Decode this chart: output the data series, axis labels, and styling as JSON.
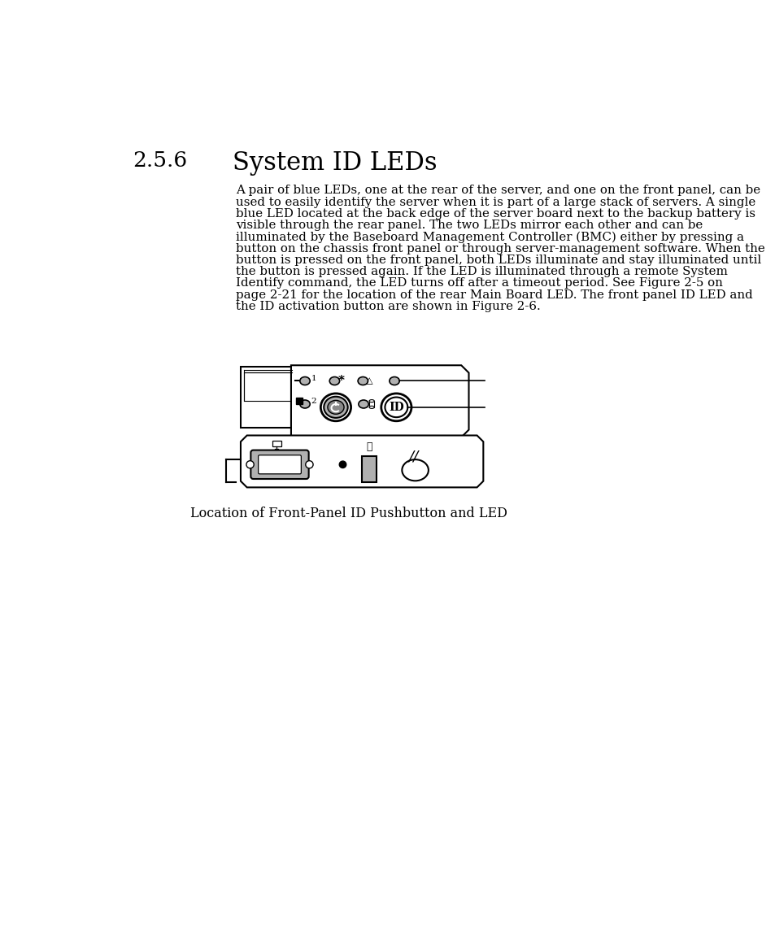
{
  "title_number": "2.5.6",
  "title_text": "System ID LEDs",
  "body_lines": [
    "A pair of blue LEDs, one at the rear of the server, and one on the front panel, can be",
    "used to easily identify the server when it is part of a large stack of servers. A single",
    "blue LED located at the back edge of the server board next to the backup battery is",
    "visible through the rear panel. The two LEDs mirror each other and can be",
    "illuminated by the Baseboard Management Controller (BMC) either by pressing a",
    "button on the chassis front panel or through server-management software. When the",
    "button is pressed on the front panel, both LEDs illuminate and stay illuminated until",
    "the button is pressed again. If the LED is illuminated through a remote System",
    "Identify command, the LED turns off after a timeout period. See Figure 2-5 on",
    "page 2-21 for the location of the rear Main Board LED. The front panel ID LED and",
    "the ID activation button are shown in Figure 2-6."
  ],
  "caption": "Location of Front-Panel ID Pushbutton and LED",
  "bg_color": "#ffffff",
  "text_color": "#000000",
  "light_gray": "#b0b0b0",
  "mid_gray": "#888888",
  "dark_gray": "#555555"
}
